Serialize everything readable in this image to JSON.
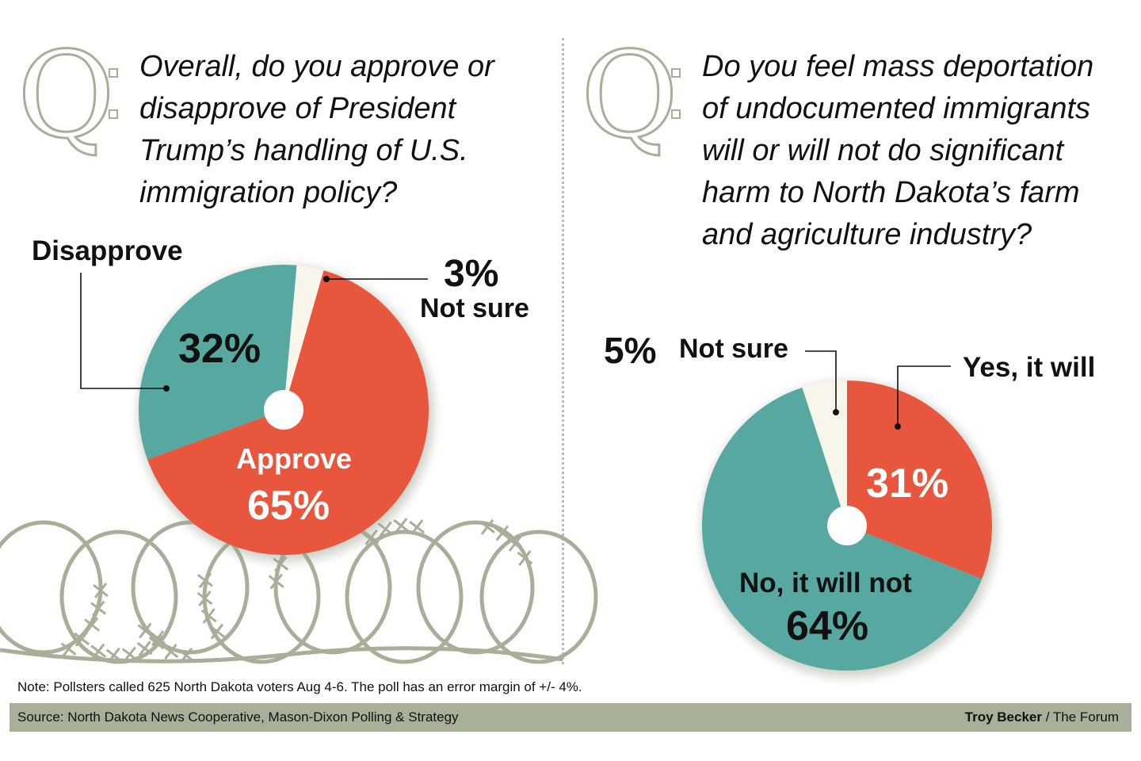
{
  "chart_data": [
    {
      "type": "pie",
      "question": "Overall, do you approve or disapprove of President Trump’s handling of U.S. immigration policy?",
      "slices": [
        {
          "label": "Approve",
          "value": 65,
          "pct_label": "65%",
          "color": "#e8573d"
        },
        {
          "label": "Disapprove",
          "value": 32,
          "pct_label": "32%",
          "color": "#56a8a0"
        },
        {
          "label": "Not sure",
          "value": 3,
          "pct_label": "3%",
          "color": "#f8f6ea"
        }
      ]
    },
    {
      "type": "pie",
      "question": "Do you feel mass deportation of undocumented immigrants will or will not do significant harm to North Dakota’s farm and agriculture industry?",
      "slices": [
        {
          "label": "Yes, it will",
          "value": 31,
          "pct_label": "31%",
          "color": "#e8573d"
        },
        {
          "label": "No, it will not",
          "value": 64,
          "pct_label": "64%",
          "color": "#56a8a0"
        },
        {
          "label": "Not sure",
          "value": 5,
          "pct_label": "5%",
          "color": "#f8f6ea"
        }
      ]
    }
  ],
  "q_letter": "Q",
  "note": "Note: Pollsters called 625 North Dakota voters Aug 4-6. The poll has an error margin of +/- 4%.",
  "source": "Source: North Dakota News Cooperative, Mason-Dixon Polling & Strategy",
  "credit_name": "Troy Becker",
  "credit_org": " / The Forum",
  "decor_icon": "barbed-wire-icon"
}
